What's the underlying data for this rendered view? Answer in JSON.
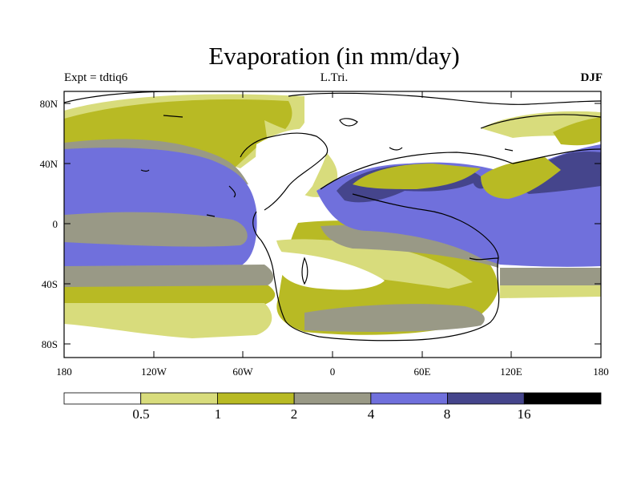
{
  "title": "Evaporation (in mm/day)",
  "subtitle_left": "Expt = tdtiq6",
  "subtitle_center": "L.Tri.",
  "subtitle_right": "DJF",
  "y_axis": {
    "ticks": [
      "80N",
      "40N",
      "0",
      "40S",
      "80S"
    ]
  },
  "x_axis": {
    "ticks": [
      "180",
      "120W",
      "60W",
      "0",
      "60E",
      "120E",
      "180"
    ]
  },
  "colorbar": {
    "labels": [
      "0.5",
      "1",
      "2",
      "4",
      "8",
      "16"
    ],
    "colors": [
      "#ffffff",
      "#d8dc7c",
      "#b8ba24",
      "#999986",
      "#7070dc",
      "#45458c",
      "#000000"
    ]
  },
  "legend_levels_mm_per_day": [
    0.5,
    1,
    2,
    4,
    8,
    16
  ]
}
